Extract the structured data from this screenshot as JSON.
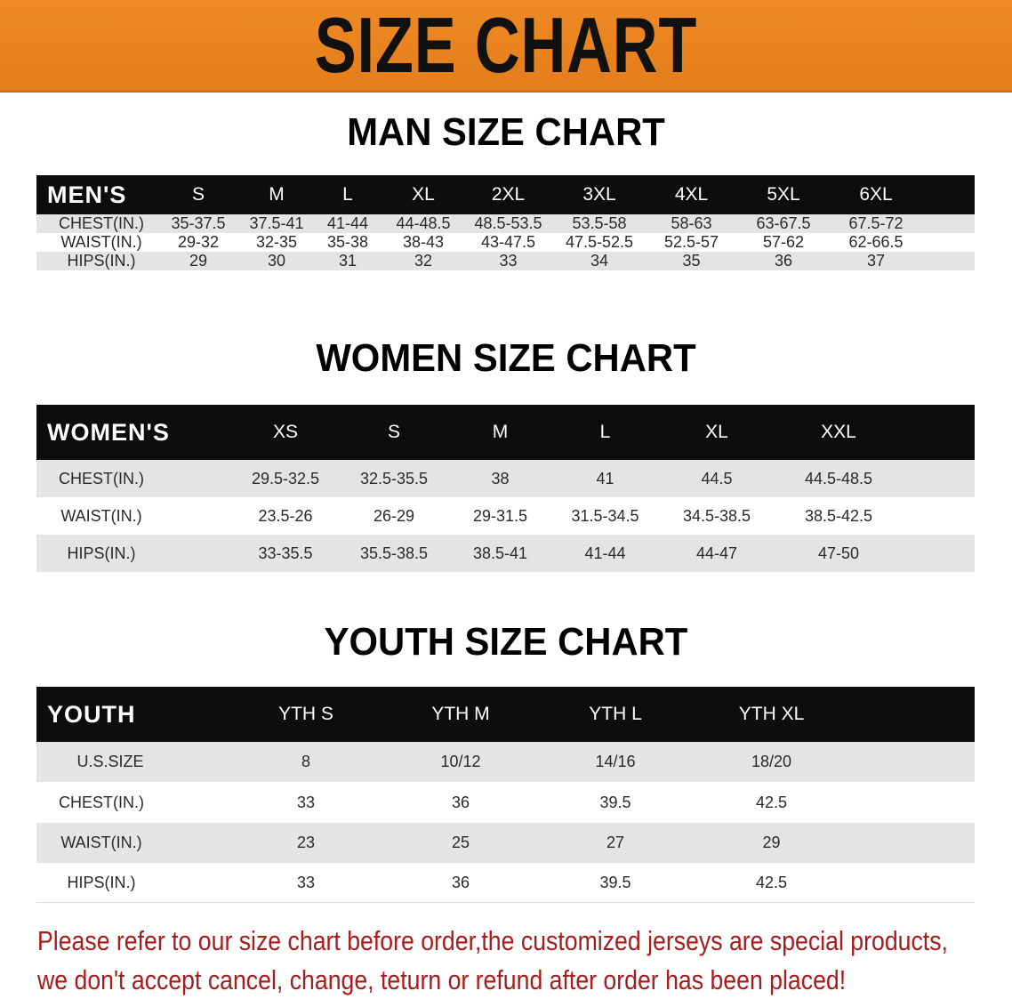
{
  "title": "SIZE CHART",
  "men": {
    "heading": "MAN SIZE CHART",
    "header": "MEN'S",
    "sizes": [
      "S",
      "M",
      "L",
      "XL",
      "2XL",
      "3XL",
      "4XL",
      "5XL",
      "6XL"
    ],
    "rows": [
      {
        "label": "CHEST(IN.)",
        "values": [
          "35-37.5",
          "37.5-41",
          "41-44",
          "44-48.5",
          "48.5-53.5",
          "53.5-58",
          "58-63",
          "63-67.5",
          "67.5-72"
        ]
      },
      {
        "label": "WAIST(IN.)",
        "values": [
          "29-32",
          "32-35",
          "35-38",
          "38-43",
          "43-47.5",
          "47.5-52.5",
          "52.5-57",
          "57-62",
          "62-66.5"
        ]
      },
      {
        "label": "HIPS(IN.)",
        "values": [
          "29",
          "30",
          "31",
          "32",
          "33",
          "34",
          "35",
          "36",
          "37"
        ]
      }
    ]
  },
  "women": {
    "heading": "WOMEN SIZE CHART",
    "header": "WOMEN'S",
    "sizes": [
      "XS",
      "S",
      "M",
      "L",
      "XL",
      "XXL"
    ],
    "rows": [
      {
        "label": "CHEST(IN.)",
        "values": [
          "29.5-32.5",
          "32.5-35.5",
          "38",
          "41",
          "44.5",
          "44.5-48.5"
        ]
      },
      {
        "label": "WAIST(IN.)",
        "values": [
          "23.5-26",
          "26-29",
          "29-31.5",
          "31.5-34.5",
          "34.5-38.5",
          "38.5-42.5"
        ]
      },
      {
        "label": "HIPS(IN.)",
        "values": [
          "33-35.5",
          "35.5-38.5",
          "38.5-41",
          "41-44",
          "44-47",
          "47-50"
        ]
      }
    ]
  },
  "youth": {
    "heading": "YOUTH SIZE CHART",
    "header": "YOUTH",
    "sizes": [
      "YTH S",
      "YTH M",
      "YTH L",
      "YTH XL"
    ],
    "rows": [
      {
        "label": "U.S.SIZE",
        "values": [
          "8",
          "10/12",
          "14/16",
          "18/20"
        ]
      },
      {
        "label": "CHEST(IN.)",
        "values": [
          "33",
          "36",
          "39.5",
          "42.5"
        ]
      },
      {
        "label": "WAIST(IN.)",
        "values": [
          "23",
          "25",
          "27",
          "29"
        ]
      },
      {
        "label": "HIPS(IN.)",
        "values": [
          "33",
          "36",
          "39.5",
          "42.5"
        ]
      }
    ]
  },
  "note": [
    "Please refer to our size chart before order,the customized jerseys are special products,",
    "we don't accept cancel, change, teturn or refund after order has been placed!"
  ],
  "colors": {
    "banner": "#e8801f",
    "header": "#0d0d0d",
    "note": "#a51d1d"
  }
}
